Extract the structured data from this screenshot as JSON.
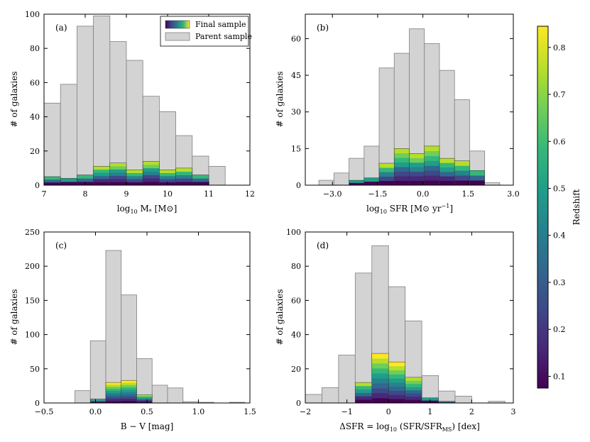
{
  "colorbar": {
    "label": "Redshift",
    "range": [
      0.075,
      0.845
    ],
    "ticks": [
      "0.1",
      "0.2",
      "0.3",
      "0.4",
      "0.5",
      "0.6",
      "0.7",
      "0.8"
    ],
    "tick_values": [
      0.1,
      0.2,
      0.3,
      0.4,
      0.5,
      0.6,
      0.7,
      0.8
    ]
  },
  "legend": {
    "final_label": "Final sample",
    "parent_label": "Parent sample"
  },
  "colors": {
    "parent_fill": "#d3d3d3",
    "parent_edge": "#808080",
    "viridis": [
      "#440154",
      "#482878",
      "#3e4989",
      "#31688e",
      "#26828e",
      "#1f9e89",
      "#35b779",
      "#6ece58",
      "#b5de2b",
      "#fde725"
    ]
  },
  "chart_data": [
    {
      "type": "bar",
      "id": "a",
      "panel_label": "(a)",
      "xlabel": "log10 M* [M⊙]",
      "ylabel": "# of galaxies",
      "xlim": [
        7,
        12
      ],
      "ylim": [
        0,
        100
      ],
      "xticks": [
        7,
        8,
        9,
        10,
        11,
        12
      ],
      "xtick_labels": [
        "7",
        "8",
        "9",
        "10",
        "11",
        "12"
      ],
      "yticks": [
        0,
        20,
        40,
        60,
        80,
        100
      ],
      "ytick_labels": [
        "0",
        "20",
        "40",
        "60",
        "80",
        "100"
      ],
      "bin_edges": [
        7.0,
        7.4,
        7.8,
        8.2,
        8.6,
        9.0,
        9.4,
        9.8,
        10.2,
        10.6,
        11.0,
        11.4
      ],
      "parent_counts": [
        48,
        59,
        93,
        99,
        84,
        73,
        52,
        43,
        29,
        17,
        11
      ],
      "final_counts": [
        5,
        4,
        6,
        11,
        13,
        9,
        14,
        9,
        10,
        6,
        0
      ],
      "has_legend": true
    },
    {
      "type": "bar",
      "id": "b",
      "panel_label": "(b)",
      "xlabel": "log10 SFR [M⊙ yr⁻¹]",
      "ylabel": "# of galaxies",
      "xlim": [
        -3.9,
        3.0
      ],
      "ylim": [
        0,
        70
      ],
      "xticks": [
        -3.0,
        -1.5,
        0.0,
        1.5,
        3.0
      ],
      "xtick_labels": [
        "−3.0",
        "−1.5",
        "0.0",
        "1.5",
        "3.0"
      ],
      "yticks": [
        0,
        15,
        30,
        45,
        60
      ],
      "ytick_labels": [
        "0",
        "15",
        "30",
        "45",
        "60"
      ],
      "bin_edges": [
        -3.45,
        -2.95,
        -2.45,
        -1.95,
        -1.45,
        -0.95,
        -0.45,
        0.05,
        0.55,
        1.05,
        1.55,
        2.05
      ],
      "parent_counts": [
        2,
        5,
        11,
        16,
        48,
        54,
        64,
        58,
        47,
        35,
        14,
        1
      ],
      "bin_edges_full": [
        -3.45,
        -2.95,
        -2.45,
        -1.95,
        -1.45,
        -0.95,
        -0.45,
        0.05,
        0.55,
        1.05,
        1.55,
        2.05,
        2.55
      ],
      "final_counts": [
        0,
        0,
        2,
        3,
        9,
        15,
        13,
        16,
        11,
        10,
        6,
        0
      ],
      "has_legend": false
    },
    {
      "type": "bar",
      "id": "c",
      "panel_label": "(c)",
      "xlabel": "B − V [mag]",
      "ylabel": "# of galaxies",
      "xlim": [
        -0.5,
        1.5
      ],
      "ylim": [
        0,
        250
      ],
      "xticks": [
        -0.5,
        0.0,
        0.5,
        1.0,
        1.5
      ],
      "xtick_labels": [
        "−0.5",
        "0.0",
        "0.5",
        "1.0",
        "1.5"
      ],
      "yticks": [
        0,
        50,
        100,
        150,
        200,
        250
      ],
      "ytick_labels": [
        "0",
        "50",
        "100",
        "150",
        "200",
        "250"
      ],
      "bin_edges": [
        -0.2,
        -0.05,
        0.1,
        0.25,
        0.4,
        0.55,
        0.7,
        0.85,
        1.0,
        1.15,
        1.3,
        1.45
      ],
      "parent_counts": [
        18,
        91,
        223,
        158,
        65,
        26,
        22,
        2,
        1,
        0,
        1
      ],
      "final_counts": [
        0,
        6,
        30,
        33,
        12,
        0,
        0,
        0,
        0,
        0,
        0
      ],
      "has_legend": false
    },
    {
      "type": "bar",
      "id": "d",
      "panel_label": "(d)",
      "xlabel": "ΔSFR = log10 (SFR/SFR_MS) [dex]",
      "ylabel": "# of galaxies",
      "xlim": [
        -2,
        3
      ],
      "ylim": [
        0,
        100
      ],
      "xticks": [
        -2,
        -1,
        0,
        1,
        2,
        3
      ],
      "xtick_labels": [
        "−2",
        "−1",
        "0",
        "1",
        "2",
        "3"
      ],
      "yticks": [
        0,
        20,
        40,
        60,
        80,
        100
      ],
      "ytick_labels": [
        "0",
        "20",
        "40",
        "60",
        "80",
        "100"
      ],
      "bin_edges": [
        -2.0,
        -1.6,
        -1.2,
        -0.8,
        -0.4,
        0.0,
        0.4,
        0.8,
        1.2,
        1.6,
        2.0,
        2.4,
        2.8
      ],
      "parent_counts": [
        5,
        9,
        28,
        76,
        92,
        68,
        48,
        16,
        7,
        4,
        0,
        1
      ],
      "final_counts": [
        0,
        0,
        0,
        12,
        29,
        24,
        15,
        3,
        1,
        0,
        0,
        0
      ],
      "has_legend": false
    }
  ]
}
